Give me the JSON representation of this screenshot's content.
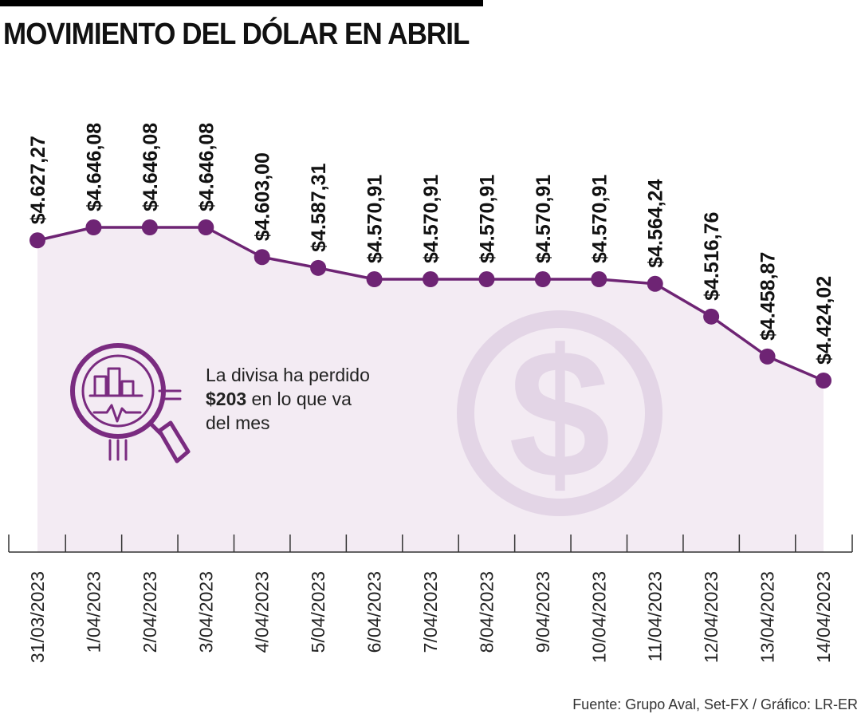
{
  "header": {
    "title": "MOVIMIENTO DEL DÓLAR EN ABRIL"
  },
  "annotation": {
    "line1": "La divisa ha perdido",
    "amount": "$203",
    "rest": " en lo que va",
    "line3": "del mes",
    "icon": "magnifier-chart-icon"
  },
  "background_icon": "dollar-sign-icon",
  "source": "Fuente: Grupo Aval, Set-FX / Gráfico: LR-ER",
  "colors": {
    "line": "#6e2474",
    "fill": "#f3ebf3",
    "watermark": "#e3d5e6",
    "icon": "#7a2b80"
  },
  "chart_data": {
    "type": "line",
    "title": "MOVIMIENTO DEL DÓLAR EN ABRIL",
    "xlabel": "",
    "ylabel": "",
    "ylim": [
      4300,
      4700
    ],
    "categories": [
      "31/03/2023",
      "1/04/2023",
      "2/04/2023",
      "3/04/2023",
      "4/04/2023",
      "5/04/2023",
      "6/04/2023",
      "7/04/2023",
      "8/04/2023",
      "9/04/2023",
      "10/04/2023",
      "11/04/2023",
      "12/04/2023",
      "13/04/2023",
      "14/04/2023"
    ],
    "values": [
      4627.27,
      4646.08,
      4646.08,
      4646.08,
      4603.0,
      4587.31,
      4570.91,
      4570.91,
      4570.91,
      4570.91,
      4570.91,
      4564.24,
      4516.76,
      4458.87,
      4424.02
    ],
    "value_labels": [
      "$4.627,27",
      "$4.646,08",
      "$4.646,08",
      "$4.646,08",
      "$4.603,00",
      "$4.587,31",
      "$4.570,91",
      "$4.570,91",
      "$4.570,91",
      "$4.570,91",
      "$4.570,91",
      "$4.564,24",
      "$4.516,76",
      "$4.458,87",
      "$4.424,02"
    ],
    "grid": false,
    "legend": "none"
  }
}
